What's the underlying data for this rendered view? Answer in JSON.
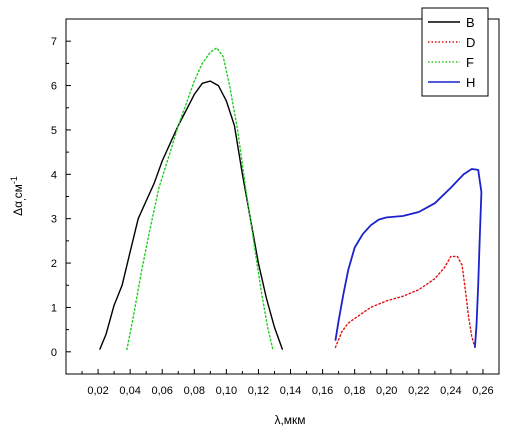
{
  "chart_data": {
    "type": "line",
    "title": "",
    "xlabel": "λ,мкм",
    "ylabel_main": "Δα",
    "ylabel_sub": ",",
    "ylabel_unit": "см",
    "ylabel_sup": "-1",
    "xlim": [
      0.0,
      0.27
    ],
    "ylim": [
      -0.5,
      7.5
    ],
    "xticks": [
      0.02,
      0.04,
      0.06,
      0.08,
      0.1,
      0.12,
      0.14,
      0.16,
      0.18,
      0.2,
      0.22,
      0.24,
      0.26
    ],
    "xtick_labels": [
      "0,02",
      "0,04",
      "0,06",
      "0,08",
      "0,10",
      "0,12",
      "0,14",
      "0,16",
      "0,18",
      "0,20",
      "0,22",
      "0,24",
      "0,26"
    ],
    "yticks": [
      0,
      1,
      2,
      3,
      4,
      5,
      6,
      7
    ],
    "ytick_labels": [
      "0",
      "1",
      "2",
      "3",
      "4",
      "5",
      "6",
      "7"
    ],
    "grid": false,
    "legend_position": "top-right",
    "series": [
      {
        "name": "B",
        "color": "#000000",
        "style": "solid",
        "points": [
          [
            0.021,
            0.05
          ],
          [
            0.025,
            0.4
          ],
          [
            0.03,
            1.05
          ],
          [
            0.035,
            1.5
          ],
          [
            0.04,
            2.25
          ],
          [
            0.045,
            3.0
          ],
          [
            0.05,
            3.4
          ],
          [
            0.055,
            3.8
          ],
          [
            0.06,
            4.3
          ],
          [
            0.065,
            4.7
          ],
          [
            0.07,
            5.1
          ],
          [
            0.075,
            5.45
          ],
          [
            0.08,
            5.8
          ],
          [
            0.085,
            6.05
          ],
          [
            0.09,
            6.1
          ],
          [
            0.095,
            6.0
          ],
          [
            0.1,
            5.65
          ],
          [
            0.105,
            5.1
          ],
          [
            0.11,
            4.0
          ],
          [
            0.115,
            3.0
          ],
          [
            0.12,
            2.0
          ],
          [
            0.125,
            1.2
          ],
          [
            0.13,
            0.55
          ],
          [
            0.135,
            0.05
          ]
        ]
      },
      {
        "name": "D",
        "color": "#e01010",
        "style": "dotted",
        "points": [
          [
            0.168,
            0.1
          ],
          [
            0.172,
            0.45
          ],
          [
            0.176,
            0.65
          ],
          [
            0.182,
            0.8
          ],
          [
            0.19,
            1.0
          ],
          [
            0.2,
            1.15
          ],
          [
            0.21,
            1.25
          ],
          [
            0.22,
            1.4
          ],
          [
            0.23,
            1.65
          ],
          [
            0.236,
            1.9
          ],
          [
            0.24,
            2.15
          ],
          [
            0.244,
            2.15
          ],
          [
            0.247,
            1.95
          ],
          [
            0.249,
            1.4
          ],
          [
            0.251,
            0.8
          ],
          [
            0.253,
            0.35
          ],
          [
            0.255,
            0.1
          ]
        ]
      },
      {
        "name": "F",
        "color": "#22cc22",
        "style": "dotted",
        "points": [
          [
            0.038,
            0.05
          ],
          [
            0.042,
            0.8
          ],
          [
            0.047,
            1.8
          ],
          [
            0.052,
            2.7
          ],
          [
            0.058,
            3.7
          ],
          [
            0.065,
            4.5
          ],
          [
            0.07,
            5.1
          ],
          [
            0.075,
            5.6
          ],
          [
            0.08,
            6.1
          ],
          [
            0.085,
            6.5
          ],
          [
            0.09,
            6.75
          ],
          [
            0.094,
            6.85
          ],
          [
            0.098,
            6.65
          ],
          [
            0.102,
            6.0
          ],
          [
            0.107,
            5.0
          ],
          [
            0.112,
            3.7
          ],
          [
            0.117,
            2.5
          ],
          [
            0.122,
            1.3
          ],
          [
            0.126,
            0.5
          ],
          [
            0.129,
            0.05
          ]
        ]
      },
      {
        "name": "H",
        "color": "#1a22cc",
        "style": "solid",
        "points": [
          [
            0.168,
            0.25
          ],
          [
            0.17,
            0.7
          ],
          [
            0.173,
            1.3
          ],
          [
            0.176,
            1.85
          ],
          [
            0.18,
            2.35
          ],
          [
            0.185,
            2.65
          ],
          [
            0.19,
            2.85
          ],
          [
            0.195,
            2.98
          ],
          [
            0.2,
            3.03
          ],
          [
            0.21,
            3.06
          ],
          [
            0.22,
            3.15
          ],
          [
            0.23,
            3.35
          ],
          [
            0.24,
            3.7
          ],
          [
            0.248,
            4.0
          ],
          [
            0.253,
            4.12
          ],
          [
            0.257,
            4.1
          ],
          [
            0.259,
            3.6
          ],
          [
            0.258,
            2.6
          ],
          [
            0.257,
            1.5
          ],
          [
            0.256,
            0.6
          ],
          [
            0.255,
            0.1
          ]
        ]
      }
    ]
  }
}
